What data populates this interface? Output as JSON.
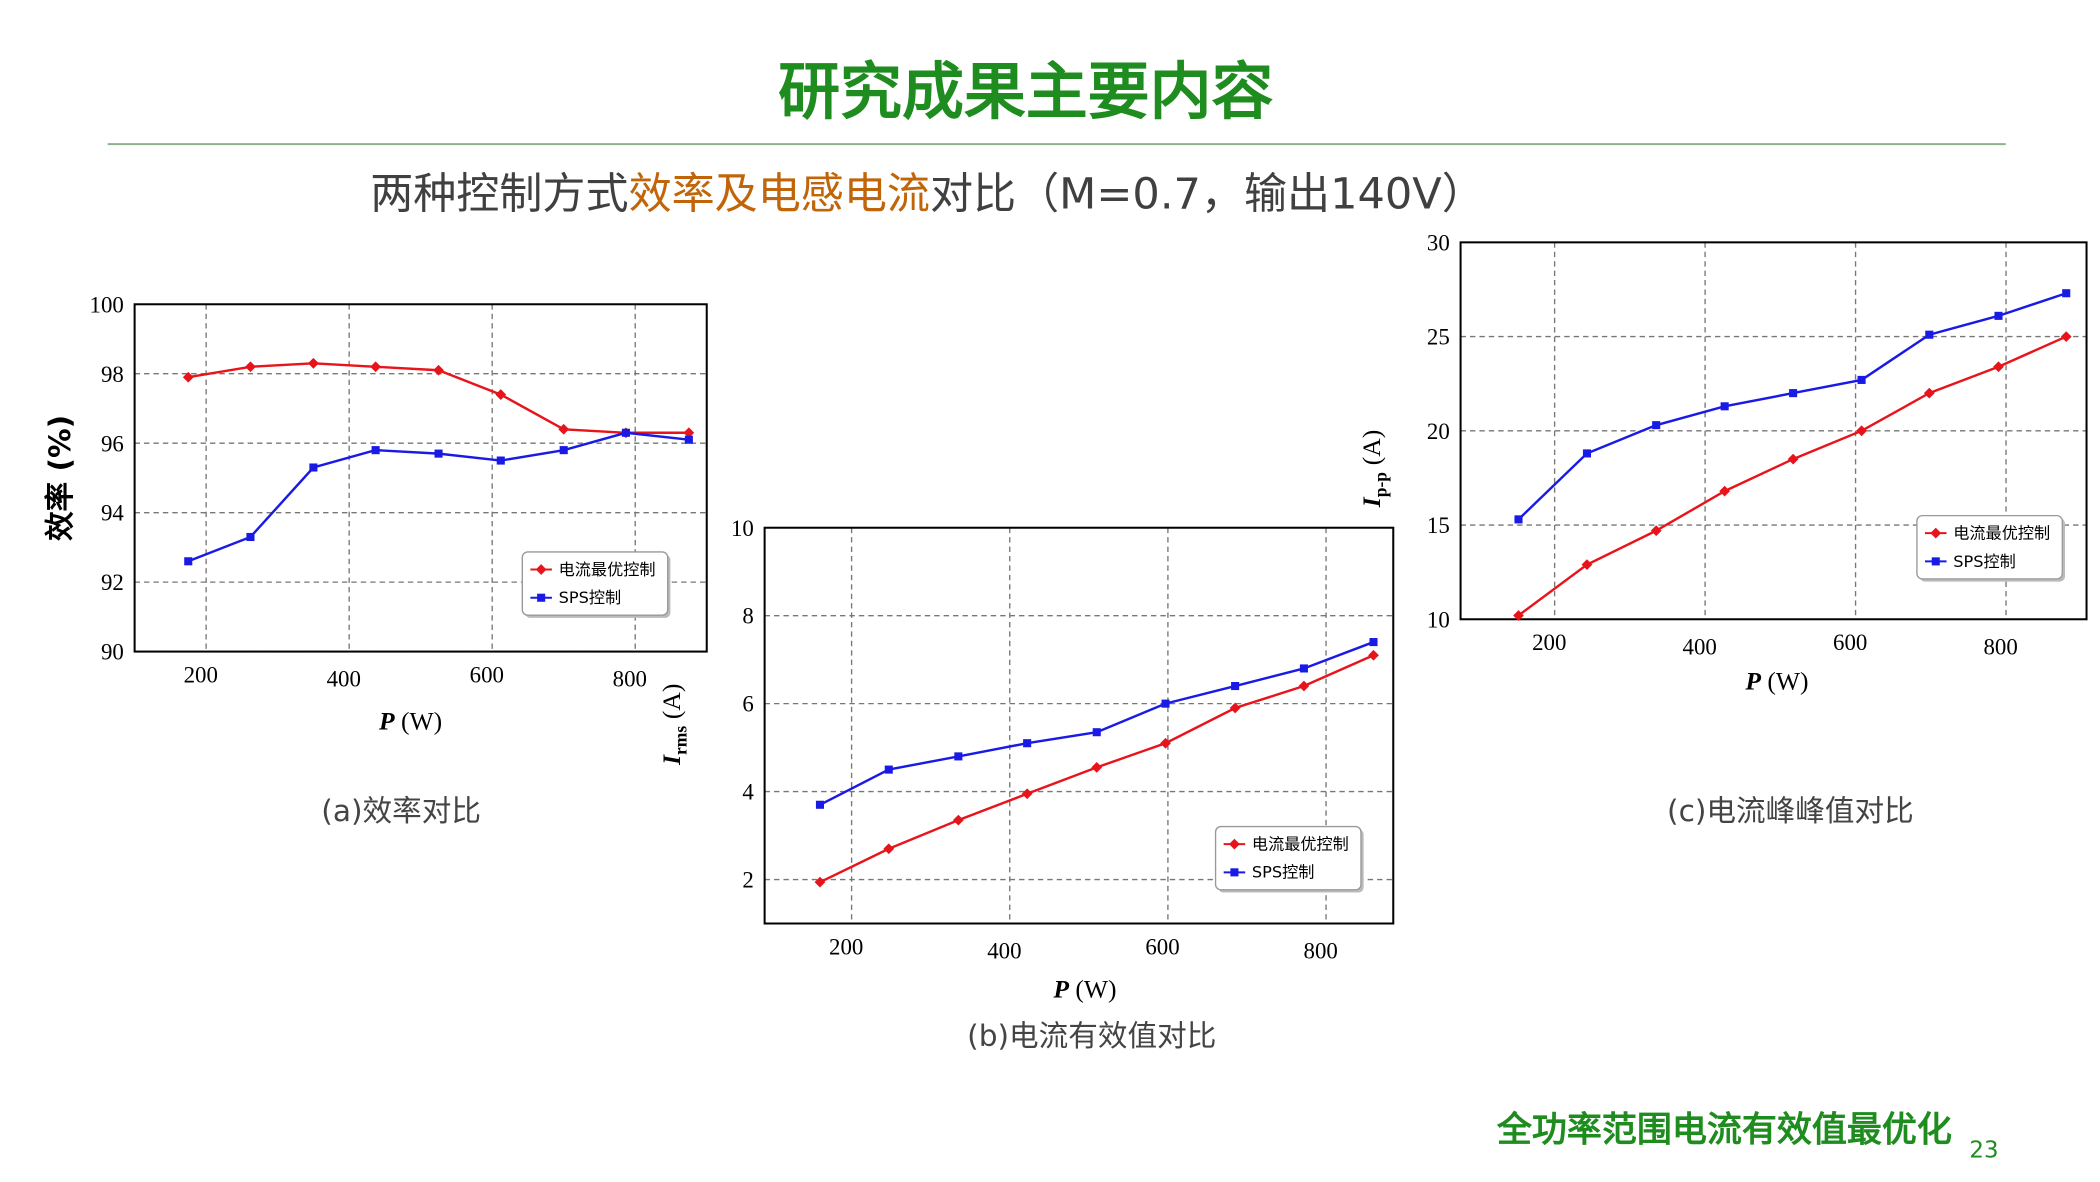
{
  "title": "研究成果主要内容",
  "subtitle": [
    "两种控制方式",
    "效率及电感电流",
    "对比（M=0.7，输出140V）"
  ],
  "footer": "全功率范围电流有效值最优化",
  "page_number": "23",
  "chart_data": [
    {
      "type": "line",
      "caption": "(a)效率对比",
      "xlabel": {
        "symbol": "P",
        "unit": "(W)"
      },
      "ylabel": "效率 (%)",
      "x": [
        175,
        262,
        350,
        437,
        525,
        612,
        700,
        787,
        875
      ],
      "xlim": [
        100,
        900
      ],
      "xticks": [
        200,
        400,
        600,
        800
      ],
      "ylim": [
        90,
        100
      ],
      "yticks": [
        90,
        92,
        94,
        96,
        98,
        100
      ],
      "grid": true,
      "series": [
        {
          "name": "电流最优控制",
          "color": "#e8141b",
          "marker": "diamond",
          "values": [
            97.9,
            98.2,
            98.3,
            98.2,
            98.1,
            97.4,
            96.4,
            96.3,
            96.3
          ]
        },
        {
          "name": "SPS控制",
          "color": "#1a1ae6",
          "marker": "square",
          "values": [
            92.6,
            93.3,
            95.3,
            95.8,
            95.7,
            95.5,
            95.8,
            96.3,
            96.1
          ]
        }
      ]
    },
    {
      "type": "line",
      "caption": "(b)电流有效值对比",
      "xlabel": {
        "symbol": "P",
        "unit": "(W)"
      },
      "ylabel": {
        "symbol": "I",
        "subscript": "rms",
        "unit": "(A)"
      },
      "x": [
        160,
        247,
        335,
        422,
        510,
        597,
        685,
        772,
        860
      ],
      "xlim": [
        90,
        885
      ],
      "xticks": [
        200,
        400,
        600,
        800
      ],
      "ylim": [
        1,
        10
      ],
      "yticks": [
        2,
        4,
        6,
        8,
        10
      ],
      "grid": true,
      "series": [
        {
          "name": "电流最优控制",
          "color": "#e8141b",
          "marker": "diamond",
          "values": [
            1.94,
            2.7,
            3.35,
            3.95,
            4.55,
            5.1,
            5.9,
            6.4,
            7.1
          ]
        },
        {
          "name": "SPS控制",
          "color": "#1a1ae6",
          "marker": "square",
          "values": [
            3.7,
            4.5,
            4.8,
            5.1,
            5.35,
            6.0,
            6.4,
            6.8,
            7.4
          ]
        }
      ]
    },
    {
      "type": "line",
      "caption": "(c)电流峰峰值对比",
      "xlabel": {
        "symbol": "P",
        "unit": "(W)"
      },
      "ylabel": {
        "symbol": "I",
        "subscript": "p-p",
        "unit": "(A)"
      },
      "x": [
        152,
        243,
        335,
        426,
        517,
        608,
        698,
        790,
        880
      ],
      "xlim": [
        75,
        907
      ],
      "xticks": [
        200,
        400,
        600,
        800
      ],
      "ylim": [
        10,
        30
      ],
      "yticks": [
        10,
        15,
        20,
        25,
        30
      ],
      "grid": true,
      "series": [
        {
          "name": "电流最优控制",
          "color": "#e8141b",
          "marker": "diamond",
          "values": [
            10.2,
            12.9,
            14.7,
            16.8,
            18.5,
            20,
            22,
            23.4,
            25
          ]
        },
        {
          "name": "SPS控制",
          "color": "#1a1ae6",
          "marker": "square",
          "values": [
            15.3,
            18.8,
            20.3,
            21.3,
            22,
            22.7,
            25.1,
            26.1,
            27.3
          ]
        }
      ]
    }
  ]
}
